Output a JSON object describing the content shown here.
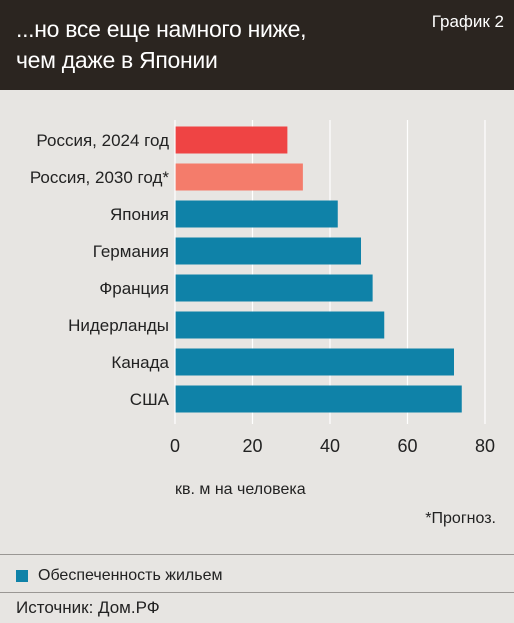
{
  "header": {
    "title": "...но все еще намного ниже,\nчем даже в Японии",
    "badge": "График 2"
  },
  "colors": {
    "header_bg": "#2b2520",
    "background": "#e7e5e2",
    "russia_actual": "#ef4444",
    "russia_forecast": "#f47c6b",
    "others": "#0f82a8",
    "gridline": "#ffffff"
  },
  "chart_data": {
    "type": "bar",
    "orientation": "horizontal",
    "categories": [
      "Россия, 2024 год",
      "Россия, 2030 год*",
      "Япония",
      "Германия",
      "Франция",
      "Нидерланды",
      "Канада",
      "США"
    ],
    "series": [
      {
        "name": "Обеспеченность жильем",
        "values": [
          29,
          33,
          42,
          48,
          51,
          54,
          72,
          74
        ]
      }
    ],
    "bar_colors": [
      "#ef4444",
      "#f47c6b",
      "#0f82a8",
      "#0f82a8",
      "#0f82a8",
      "#0f82a8",
      "#0f82a8",
      "#0f82a8"
    ],
    "xlim": [
      0,
      80
    ],
    "xticks": [
      0,
      20,
      40,
      60,
      80
    ],
    "xlabel": "кв. м на человека",
    "grid": true
  },
  "footnote": "*Прогноз.",
  "legend": {
    "label": "Обеспеченность жильем"
  },
  "source": "Источник: Дом.РФ"
}
